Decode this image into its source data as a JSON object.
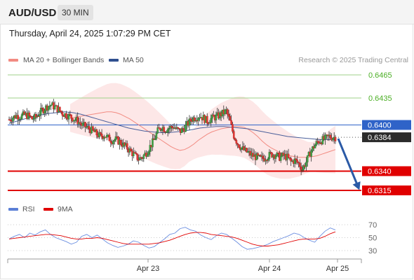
{
  "header": {
    "symbol": "AUD/USD",
    "timeframe": "30 MIN"
  },
  "timestamp": "Thursday, April 24, 2025 1:07:29 PM CET",
  "legend": [
    {
      "label": "MA 20 + Bollinger Bands",
      "color": "#f28b82"
    },
    {
      "label": "MA 50",
      "color": "#2f4f8f"
    }
  ],
  "credit": "Research © 2025 Trading Central",
  "rsi_legend": [
    {
      "label": "RSI",
      "color": "#5b7fd6"
    },
    {
      "label": "9MA",
      "color": "#e00000"
    }
  ],
  "chart_data": [
    {
      "type": "candlestick",
      "title": "",
      "y_range": [
        0.63,
        0.6475
      ],
      "price_levels": [
        {
          "value": 0.6465,
          "label": "0.6465",
          "kind": "resistance"
        },
        {
          "value": 0.6435,
          "label": "0.6435",
          "kind": "resistance"
        },
        {
          "value": 0.64,
          "label": "0.6400",
          "kind": "pivot"
        },
        {
          "value": 0.6384,
          "label": "0.6384",
          "kind": "last-price"
        },
        {
          "value": 0.634,
          "label": "0.6340",
          "kind": "support"
        },
        {
          "value": 0.6315,
          "label": "0.6315",
          "kind": "support"
        }
      ],
      "x_ticks": [
        "Apr 23",
        "Apr 24",
        "Apr 25"
      ],
      "trend_arrow": {
        "from": 0.6384,
        "to": 0.6315,
        "direction": "down"
      },
      "close_path": [
        0.6407,
        0.641,
        0.6412,
        0.6411,
        0.6413,
        0.6412,
        0.6408,
        0.641,
        0.6416,
        0.642,
        0.6424,
        0.6426,
        0.6423,
        0.642,
        0.6415,
        0.6413,
        0.6411,
        0.6408,
        0.6405,
        0.64,
        0.6398,
        0.6395,
        0.6392,
        0.6388,
        0.6385,
        0.6387,
        0.6383,
        0.638,
        0.6381,
        0.6378,
        0.6374,
        0.637,
        0.6365,
        0.636,
        0.6356,
        0.6358,
        0.6364,
        0.6372,
        0.638,
        0.6392,
        0.6398,
        0.6394,
        0.6396,
        0.6398,
        0.6394,
        0.6392,
        0.6396,
        0.6402,
        0.6408,
        0.641,
        0.6412,
        0.6409,
        0.6405,
        0.6408,
        0.641,
        0.6412,
        0.6415,
        0.6418,
        0.6404,
        0.6386,
        0.6376,
        0.637,
        0.6366,
        0.6363,
        0.636,
        0.6358,
        0.6356,
        0.6357,
        0.636,
        0.6362,
        0.6361,
        0.6358,
        0.636,
        0.6358,
        0.6352,
        0.6354,
        0.635,
        0.6343,
        0.6352,
        0.6364,
        0.6372,
        0.6378,
        0.638,
        0.6382,
        0.6385,
        0.6384,
        0.6384
      ],
      "ma20_path": [
        0.6409,
        0.641,
        0.6411,
        0.6412,
        0.6413,
        0.6414,
        0.6415,
        0.6416,
        0.6417,
        0.6417,
        0.6416,
        0.6414,
        0.6411,
        0.6408,
        0.6404,
        0.64,
        0.6396,
        0.6392,
        0.6388,
        0.6384,
        0.638,
        0.6376,
        0.6372,
        0.6369,
        0.6367,
        0.6368,
        0.6371,
        0.6375,
        0.638,
        0.6384,
        0.6388,
        0.6391,
        0.6393,
        0.6395,
        0.6396,
        0.6397,
        0.6398,
        0.6398,
        0.6397,
        0.6394,
        0.639,
        0.6385,
        0.6379,
        0.6374,
        0.637,
        0.6367,
        0.6364,
        0.6362,
        0.636,
        0.6359,
        0.6358,
        0.6358,
        0.6358,
        0.6359,
        0.636,
        0.6362,
        0.6364,
        0.6366,
        0.6368
      ],
      "ma50_path": [
        0.6402,
        0.6405,
        0.6408,
        0.6411,
        0.6413,
        0.6415,
        0.6416,
        0.6417,
        0.6416,
        0.6414,
        0.6411,
        0.6408,
        0.6405,
        0.6402,
        0.6399,
        0.6396,
        0.6394,
        0.6392,
        0.6391,
        0.639,
        0.639,
        0.6391,
        0.6392,
        0.6394,
        0.6396,
        0.6397,
        0.6398,
        0.6398,
        0.6397,
        0.6396,
        0.6395,
        0.6393,
        0.6391,
        0.6389,
        0.6387,
        0.6385,
        0.6384,
        0.6383,
        0.6382,
        0.6381,
        0.6381,
        0.6381
      ]
    },
    {
      "type": "line",
      "title": "",
      "y_range": [
        22,
        78
      ],
      "y_ticks": [
        70,
        50,
        30
      ],
      "series": [
        {
          "name": "RSI",
          "values": [
            48,
            52,
            55,
            50,
            57,
            54,
            59,
            62,
            55,
            50,
            47,
            44,
            40,
            43,
            52,
            55,
            50,
            54,
            48,
            42,
            38,
            35,
            37,
            40,
            45,
            43,
            38,
            34,
            36,
            42,
            48,
            55,
            57,
            64,
            66,
            62,
            60,
            54,
            50,
            47,
            53,
            57,
            55,
            49,
            43,
            36,
            32,
            33,
            35,
            37,
            40,
            44,
            47,
            50,
            53,
            57,
            55,
            50,
            46,
            43,
            52,
            60,
            65,
            62
          ]
        },
        {
          "name": "9MA",
          "values": [
            48,
            49,
            50,
            51,
            52,
            53,
            54,
            55,
            55,
            54,
            53,
            51,
            49,
            48,
            48,
            49,
            49,
            50,
            49,
            47,
            45,
            43,
            41,
            40,
            40,
            40,
            40,
            40,
            41,
            42,
            44,
            46,
            49,
            52,
            55,
            57,
            58,
            58,
            57,
            55,
            54,
            53,
            52,
            51,
            49,
            46,
            43,
            40,
            38,
            37,
            37,
            38,
            39,
            41,
            43,
            45,
            47,
            48,
            48,
            48,
            49,
            52,
            56,
            59
          ]
        }
      ]
    }
  ]
}
